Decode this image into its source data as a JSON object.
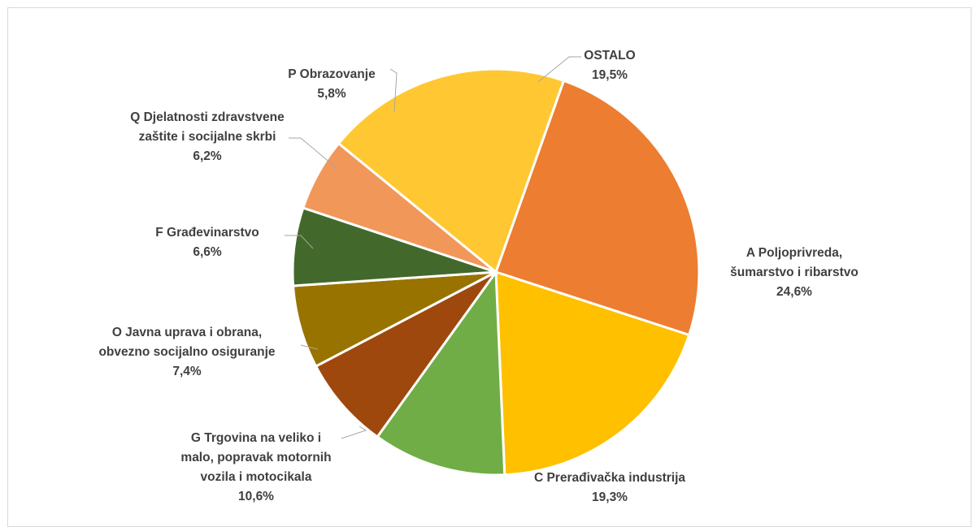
{
  "chart_data": {
    "type": "pie",
    "title": "",
    "start_angle_deg": 19.5,
    "direction": "clockwise",
    "slices": [
      {
        "label_lines": [
          "A Poljoprivreda,",
          "šumarstvo i ribarstvo"
        ],
        "value": 24.6,
        "value_text": "24,6%",
        "color": "#ED7D31"
      },
      {
        "label_lines": [
          "C Prerađivačka industrija"
        ],
        "value": 19.3,
        "value_text": "19,3%",
        "color": "#FFC000"
      },
      {
        "label_lines": [
          "G Trgovina na veliko i",
          "malo, popravak motornih",
          "vozila i motocikala"
        ],
        "value": 10.6,
        "value_text": "10,6%",
        "color": "#70AD47"
      },
      {
        "label_lines": [
          "O Javna uprava i obrana,",
          "obvezno socijalno osiguranje"
        ],
        "value": 7.4,
        "value_text": "7,4%",
        "color": "#9E480E"
      },
      {
        "label_lines": [
          "F Građevinarstvo"
        ],
        "value": 6.6,
        "value_text": "6,6%",
        "color": "#997300"
      },
      {
        "label_lines": [
          "Q Djelatnosti zdravstvene",
          "zaštite i socijalne skrbi"
        ],
        "value": 6.2,
        "value_text": "6,2%",
        "color": "#43682B"
      },
      {
        "label_lines": [
          "P Obrazovanje"
        ],
        "value": 5.8,
        "value_text": "5,8%",
        "color": "#F1975A"
      },
      {
        "label_lines": [
          "OSTALO"
        ],
        "value": 19.5,
        "value_text": "19,5%",
        "color": "#FFC832"
      }
    ],
    "legend": "none"
  }
}
